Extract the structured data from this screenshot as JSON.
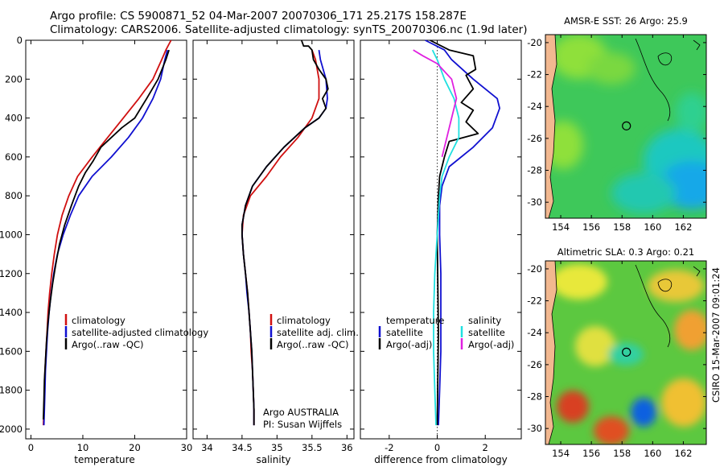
{
  "header": {
    "line1": "Argo profile: CS 5900871_52 04-Mar-2007 20070306_171 25.217S 158.287E",
    "line2": "Climatology: CARS2006. Satellite-adjusted climatology: synTS_20070306.nc (1.9d later)"
  },
  "credit": "CSIRO 15-Mar-2007 09:01:24",
  "colors": {
    "clim": "#d01010",
    "sat": "#1010d0",
    "argo": "#000000",
    "magenta": "#e020e0",
    "cyan": "#20e0e0"
  },
  "chart_data": [
    {
      "type": "line",
      "id": "temperature",
      "xlabel": "temperature",
      "xlim": [
        -1,
        30
      ],
      "ylim": [
        2050,
        0
      ],
      "xticks": [
        0,
        10,
        20,
        30
      ],
      "yticks": [
        0,
        200,
        400,
        600,
        800,
        1000,
        1200,
        1400,
        1600,
        1800,
        2000
      ],
      "legend": [
        "climatology",
        "satellite-adjusted climatology",
        "Argo(..raw -QC)"
      ],
      "series": [
        {
          "name": "climatology",
          "color": "clim",
          "points": [
            [
              27,
              0
            ],
            [
              26,
              50
            ],
            [
              25.2,
              100
            ],
            [
              23.5,
              200
            ],
            [
              20.8,
              300
            ],
            [
              17.8,
              400
            ],
            [
              14.8,
              500
            ],
            [
              11.8,
              600
            ],
            [
              9,
              700
            ],
            [
              7.3,
              800
            ],
            [
              6,
              900
            ],
            [
              5.1,
              1000
            ],
            [
              4.5,
              1100
            ],
            [
              4,
              1200
            ],
            [
              3.6,
              1300
            ],
            [
              3.3,
              1400
            ],
            [
              3.1,
              1500
            ],
            [
              2.9,
              1600
            ],
            [
              2.7,
              1700
            ],
            [
              2.6,
              1800
            ],
            [
              2.5,
              1900
            ],
            [
              2.4,
              1980
            ]
          ]
        },
        {
          "name": "satellite-adjusted climatology",
          "color": "sat",
          "points": [
            [
              26.3,
              50
            ],
            [
              25.8,
              100
            ],
            [
              25,
              200
            ],
            [
              23.5,
              300
            ],
            [
              21.5,
              400
            ],
            [
              18.8,
              500
            ],
            [
              15.5,
              600
            ],
            [
              11.8,
              700
            ],
            [
              9.2,
              800
            ],
            [
              7.6,
              900
            ],
            [
              6.2,
              1000
            ],
            [
              5.1,
              1100
            ],
            [
              4.4,
              1200
            ],
            [
              3.9,
              1300
            ],
            [
              3.5,
              1400
            ],
            [
              3.2,
              1500
            ],
            [
              3,
              1600
            ],
            [
              2.8,
              1700
            ],
            [
              2.7,
              1800
            ],
            [
              2.6,
              1900
            ],
            [
              2.5,
              1980
            ]
          ]
        },
        {
          "name": "Argo(..raw -QC)",
          "color": "argo",
          "points": [
            [
              26.6,
              50
            ],
            [
              26,
              100
            ],
            [
              24.5,
              200
            ],
            [
              22.3,
              300
            ],
            [
              20,
              400
            ],
            [
              17.5,
              450
            ],
            [
              15.5,
              500
            ],
            [
              13.5,
              550
            ],
            [
              12,
              620
            ],
            [
              10.5,
              680
            ],
            [
              9.2,
              750
            ],
            [
              7.8,
              850
            ],
            [
              6.5,
              950
            ],
            [
              5.5,
              1050
            ],
            [
              4.8,
              1150
            ],
            [
              4.2,
              1250
            ],
            [
              3.7,
              1350
            ],
            [
              3.3,
              1450
            ],
            [
              3,
              1550
            ],
            [
              2.8,
              1650
            ],
            [
              2.6,
              1750
            ],
            [
              2.5,
              1850
            ],
            [
              2.4,
              1950
            ]
          ]
        }
      ]
    },
    {
      "type": "line",
      "id": "salinity",
      "xlabel": "salinity",
      "xlim": [
        33.8,
        36.1
      ],
      "ylim": [
        2050,
        0
      ],
      "xticks": [
        34,
        34.5,
        35,
        35.5,
        36
      ],
      "legend": [
        "climatology",
        "satellite adj. clim.",
        "Argo(..raw -QC)"
      ],
      "annotation": [
        "Argo AUSTRALIA",
        "PI: Susan Wijffels"
      ],
      "series": [
        {
          "name": "climatology",
          "color": "clim",
          "points": [
            [
              35.5,
              50
            ],
            [
              35.55,
              100
            ],
            [
              35.6,
              200
            ],
            [
              35.6,
              300
            ],
            [
              35.5,
              400
            ],
            [
              35.3,
              500
            ],
            [
              35.05,
              600
            ],
            [
              34.85,
              700
            ],
            [
              34.62,
              800
            ],
            [
              34.52,
              900
            ],
            [
              34.5,
              1000
            ],
            [
              34.52,
              1100
            ],
            [
              34.55,
              1200
            ],
            [
              34.58,
              1300
            ],
            [
              34.6,
              1400
            ],
            [
              34.62,
              1500
            ],
            [
              34.63,
              1600
            ],
            [
              34.65,
              1700
            ],
            [
              34.66,
              1800
            ],
            [
              34.67,
              1900
            ],
            [
              34.67,
              1980
            ]
          ]
        },
        {
          "name": "satellite adj. clim.",
          "color": "sat",
          "points": [
            [
              35.6,
              50
            ],
            [
              35.62,
              100
            ],
            [
              35.7,
              200
            ],
            [
              35.72,
              300
            ],
            [
              35.7,
              350
            ],
            [
              35.6,
              400
            ],
            [
              35.4,
              450
            ],
            [
              35.1,
              550
            ],
            [
              34.85,
              650
            ],
            [
              34.65,
              750
            ],
            [
              34.55,
              850
            ],
            [
              34.5,
              950
            ],
            [
              34.5,
              1000
            ],
            [
              34.52,
              1100
            ],
            [
              34.55,
              1200
            ],
            [
              34.57,
              1300
            ],
            [
              34.6,
              1400
            ],
            [
              34.62,
              1500
            ],
            [
              34.64,
              1600
            ],
            [
              34.65,
              1700
            ],
            [
              34.66,
              1800
            ],
            [
              34.67,
              1900
            ],
            [
              34.67,
              1980
            ]
          ]
        },
        {
          "name": "Argo(..raw -QC)",
          "color": "argo",
          "points": [
            [
              35.35,
              0
            ],
            [
              35.38,
              30
            ],
            [
              35.45,
              30
            ],
            [
              35.5,
              50
            ],
            [
              35.52,
              100
            ],
            [
              35.6,
              150
            ],
            [
              35.7,
              200
            ],
            [
              35.73,
              250
            ],
            [
              35.65,
              300
            ],
            [
              35.7,
              350
            ],
            [
              35.6,
              400
            ],
            [
              35.4,
              450
            ],
            [
              35.1,
              550
            ],
            [
              34.85,
              650
            ],
            [
              34.65,
              750
            ],
            [
              34.55,
              850
            ],
            [
              34.5,
              950
            ],
            [
              34.5,
              1000
            ],
            [
              34.52,
              1100
            ],
            [
              34.55,
              1200
            ],
            [
              34.58,
              1300
            ],
            [
              34.6,
              1400
            ],
            [
              34.62,
              1500
            ],
            [
              34.64,
              1600
            ],
            [
              34.65,
              1700
            ],
            [
              34.66,
              1800
            ],
            [
              34.67,
              1900
            ],
            [
              34.67,
              1980
            ]
          ]
        }
      ]
    },
    {
      "type": "line",
      "id": "difference",
      "xlabel": "difference from climatology",
      "xlim": [
        -3.2,
        3.5
      ],
      "ylim": [
        2050,
        0
      ],
      "xticks": [
        -2,
        0,
        2
      ],
      "legend_left_title": "temperature",
      "legend_right_title": "salinity",
      "legend_left": [
        "satellite",
        "Argo(-adj)"
      ],
      "legend_right": [
        "satellite",
        "Argo(-adj)"
      ],
      "series": [
        {
          "name": "temperature satellite",
          "color": "sat",
          "points": [
            [
              -0.5,
              0
            ],
            [
              0.3,
              50
            ],
            [
              0.6,
              100
            ],
            [
              1.5,
              200
            ],
            [
              2.5,
              300
            ],
            [
              2.6,
              350
            ],
            [
              2.3,
              450
            ],
            [
              1.5,
              550
            ],
            [
              0.5,
              650
            ],
            [
              0.2,
              750
            ],
            [
              0.1,
              850
            ],
            [
              0.1,
              1000
            ],
            [
              0.15,
              1200
            ],
            [
              0.15,
              1400
            ],
            [
              0.15,
              1600
            ],
            [
              0.1,
              1800
            ],
            [
              0.05,
              1980
            ]
          ]
        },
        {
          "name": "temperature Argo(-adj)",
          "color": "argo",
          "points": [
            [
              -0.3,
              0
            ],
            [
              0.5,
              50
            ],
            [
              1.5,
              80
            ],
            [
              1.6,
              150
            ],
            [
              1.2,
              180
            ],
            [
              1.5,
              250
            ],
            [
              1.0,
              320
            ],
            [
              1.5,
              360
            ],
            [
              1.2,
              420
            ],
            [
              1.7,
              480
            ],
            [
              0.5,
              520
            ],
            [
              0.3,
              600
            ],
            [
              0.1,
              700
            ],
            [
              0.05,
              800
            ],
            [
              0.0,
              1000
            ],
            [
              0.05,
              1500
            ],
            [
              0.0,
              1980
            ]
          ]
        },
        {
          "name": "salinity satellite",
          "color": "cyan",
          "points": [
            [
              -0.2,
              50
            ],
            [
              0,
              100
            ],
            [
              0.3,
              200
            ],
            [
              0.7,
              300
            ],
            [
              0.9,
              400
            ],
            [
              0.9,
              500
            ],
            [
              0.5,
              600
            ],
            [
              0.2,
              700
            ],
            [
              0.1,
              800
            ],
            [
              0,
              1000
            ],
            [
              -0.1,
              1200
            ],
            [
              -0.15,
              1400
            ],
            [
              -0.15,
              1600
            ],
            [
              -0.1,
              1800
            ],
            [
              -0.05,
              1980
            ]
          ]
        },
        {
          "name": "salinity Argo(-adj)",
          "color": "magenta",
          "points": [
            [
              -1,
              50
            ],
            [
              -0.6,
              80
            ],
            [
              0,
              120
            ],
            [
              0.6,
              200
            ],
            [
              0.8,
              300
            ],
            [
              0.6,
              400
            ],
            [
              0.4,
              500
            ],
            [
              0.2,
              600
            ]
          ]
        }
      ]
    },
    {
      "type": "heatmap",
      "id": "sst-map",
      "title": "AMSR-E SST: 26 Argo: 25.9",
      "xlim": [
        153,
        163.5
      ],
      "ylim": [
        -31,
        -19.5
      ],
      "xticks": [
        154,
        156,
        158,
        160,
        162
      ],
      "yticks": [
        -20,
        -22,
        -24,
        -26,
        -28,
        -30
      ],
      "marker": [
        158.287,
        -25.217
      ]
    },
    {
      "type": "heatmap",
      "id": "sla-map",
      "title": "Altimetric SLA: 0.3 Argo: 0.21",
      "xlim": [
        153,
        163.5
      ],
      "ylim": [
        -31,
        -19.5
      ],
      "xticks": [
        154,
        156,
        158,
        160,
        162
      ],
      "yticks": [
        -20,
        -22,
        -24,
        -26,
        -28,
        -30
      ],
      "marker": [
        158.287,
        -25.217
      ]
    }
  ]
}
